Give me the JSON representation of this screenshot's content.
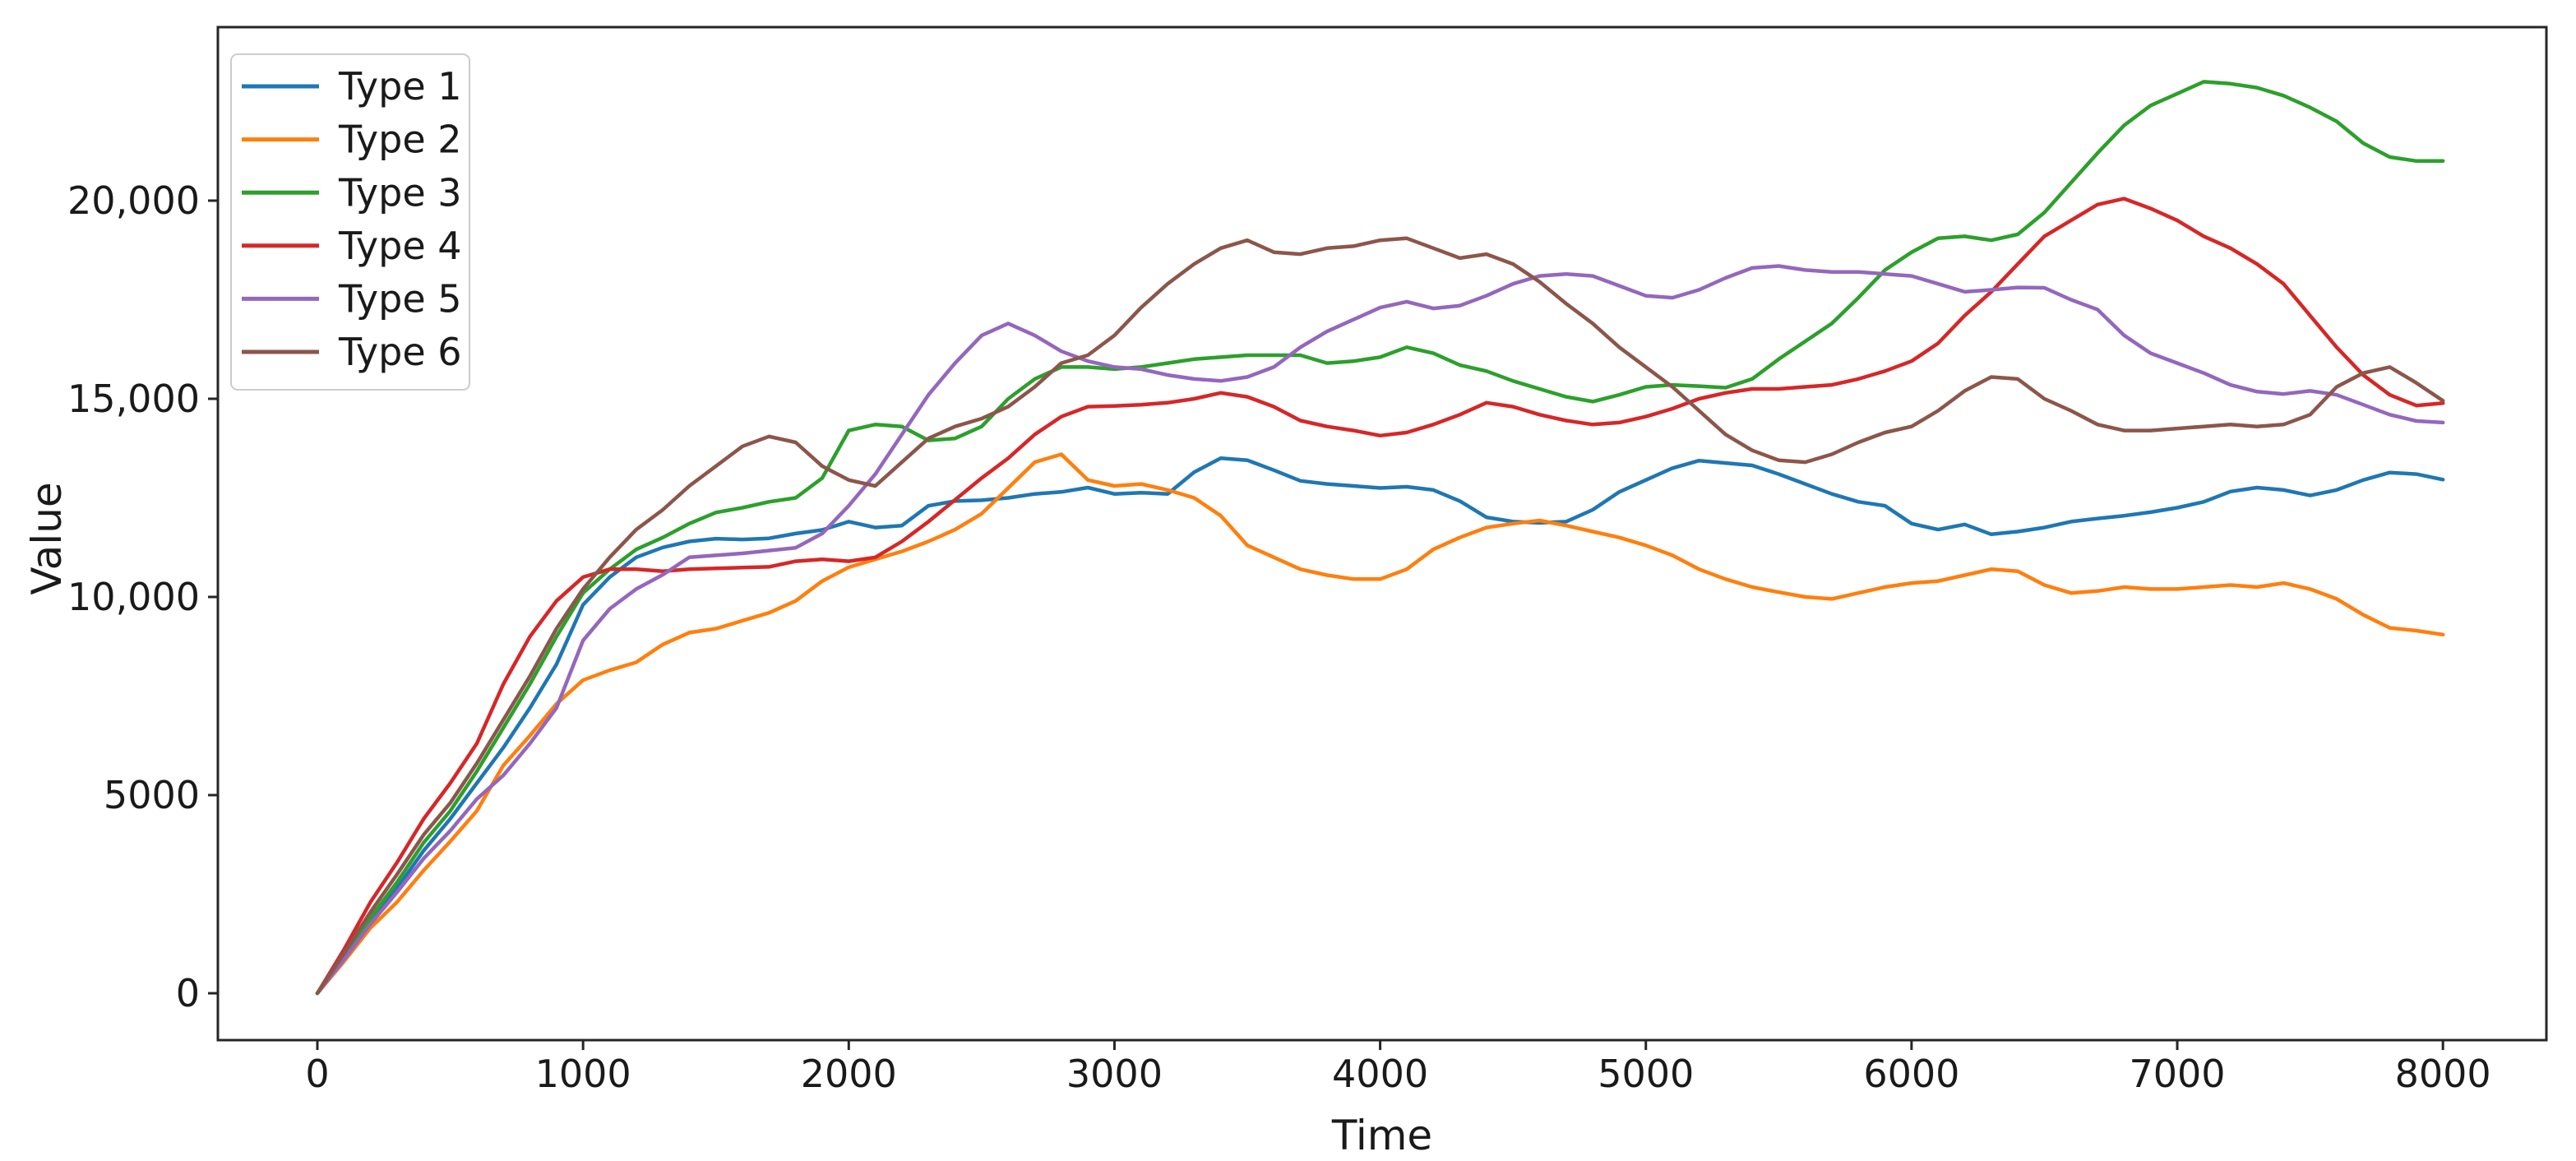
{
  "figure": {
    "background": "#ffffff",
    "text_color": "#1a1a1a",
    "spine_color": "#262626"
  },
  "chart_data": {
    "type": "line",
    "title": "",
    "xlabel": "Time",
    "ylabel": "Value",
    "grid": false,
    "legend_position": "upper left",
    "xlim": [
      -375,
      8390
    ],
    "ylim": [
      -1180,
      24380
    ],
    "x_ticks": [
      0,
      1000,
      2000,
      3000,
      4000,
      5000,
      6000,
      7000,
      8000
    ],
    "x_tick_labels": [
      "0",
      "1000",
      "2000",
      "3000",
      "4000",
      "5000",
      "6000",
      "7000",
      "8000"
    ],
    "y_ticks": [
      0,
      5000,
      10000,
      15000,
      20000
    ],
    "y_tick_labels": [
      "0",
      "5000",
      "10,000",
      "15,000",
      "20,000"
    ],
    "x_start": 0,
    "x_step": 100,
    "series": [
      {
        "name": "Type 1",
        "color": "#1f77b4",
        "values": [
          0,
          900,
          1800,
          2650,
          3600,
          4400,
          5300,
          6200,
          7200,
          8300,
          9800,
          10500,
          11000,
          11250,
          11400,
          11470,
          11450,
          11480,
          11600,
          11690,
          11900,
          11750,
          11800,
          12300,
          12420,
          12440,
          12500,
          12600,
          12650,
          12760,
          12600,
          12630,
          12600,
          13150,
          13500,
          13450,
          13200,
          12930,
          12850,
          12800,
          12750,
          12780,
          12700,
          12420,
          12010,
          11900,
          11870,
          11900,
          12200,
          12650,
          12950,
          13250,
          13440,
          13380,
          13320,
          13100,
          12850,
          12600,
          12400,
          12300,
          11850,
          11700,
          11830,
          11580,
          11650,
          11750,
          11900,
          11980,
          12050,
          12140,
          12250,
          12400,
          12660,
          12760,
          12700,
          12560,
          12700,
          12950,
          13140,
          13100,
          12960
        ]
      },
      {
        "name": "Type 2",
        "color": "#ff7f0e",
        "values": [
          0,
          800,
          1650,
          2300,
          3100,
          3830,
          4600,
          5750,
          6500,
          7300,
          7900,
          8150,
          8350,
          8800,
          9100,
          9200,
          9400,
          9600,
          9900,
          10400,
          10750,
          10950,
          11150,
          11400,
          11700,
          12100,
          12750,
          13400,
          13600,
          12950,
          12800,
          12850,
          12700,
          12500,
          12050,
          11300,
          11000,
          10700,
          10550,
          10450,
          10450,
          10700,
          11200,
          11500,
          11750,
          11850,
          11930,
          11800,
          11650,
          11500,
          11300,
          11050,
          10700,
          10450,
          10250,
          10120,
          10000,
          9950,
          10100,
          10250,
          10350,
          10400,
          10550,
          10700,
          10650,
          10300,
          10100,
          10150,
          10250,
          10200,
          10200,
          10250,
          10300,
          10250,
          10350,
          10200,
          9950,
          9550,
          9220,
          9150,
          9050
        ]
      },
      {
        "name": "Type 3",
        "color": "#2ca02c",
        "values": [
          0,
          950,
          1900,
          2800,
          3800,
          4600,
          5600,
          6700,
          7800,
          9000,
          10100,
          10700,
          11200,
          11500,
          11850,
          12130,
          12250,
          12400,
          12500,
          13000,
          14200,
          14350,
          14300,
          13950,
          14000,
          14300,
          15000,
          15500,
          15800,
          15800,
          15750,
          15800,
          15900,
          16000,
          16050,
          16100,
          16100,
          16100,
          15900,
          15950,
          16050,
          16300,
          16150,
          15850,
          15700,
          15450,
          15250,
          15050,
          14930,
          15100,
          15300,
          15350,
          15320,
          15280,
          15500,
          16000,
          16450,
          16900,
          17550,
          18250,
          18700,
          19050,
          19100,
          19000,
          19150,
          19700,
          20450,
          21200,
          21900,
          22400,
          22700,
          23000,
          22950,
          22850,
          22650,
          22350,
          22000,
          21450,
          21100,
          21000,
          21000
        ]
      },
      {
        "name": "Type 4",
        "color": "#d62728",
        "values": [
          0,
          1100,
          2300,
          3300,
          4400,
          5300,
          6300,
          7800,
          9000,
          9900,
          10500,
          10700,
          10700,
          10650,
          10700,
          10720,
          10740,
          10760,
          10900,
          10950,
          10900,
          11000,
          11400,
          11900,
          12450,
          13000,
          13500,
          14100,
          14550,
          14800,
          14820,
          14850,
          14900,
          15000,
          15150,
          15050,
          14800,
          14450,
          14300,
          14200,
          14070,
          14150,
          14350,
          14600,
          14900,
          14800,
          14600,
          14450,
          14350,
          14400,
          14550,
          14750,
          15000,
          15150,
          15250,
          15250,
          15300,
          15350,
          15500,
          15700,
          15950,
          16400,
          17100,
          17700,
          18400,
          19100,
          19500,
          19900,
          20050,
          19800,
          19500,
          19100,
          18800,
          18400,
          17900,
          17100,
          16300,
          15600,
          15100,
          14830,
          14890
        ]
      },
      {
        "name": "Type 5",
        "color": "#9467bd",
        "values": [
          0,
          850,
          1750,
          2550,
          3400,
          4100,
          4900,
          5500,
          6300,
          7200,
          8900,
          9700,
          10200,
          10560,
          11000,
          11050,
          11100,
          11170,
          11240,
          11600,
          12300,
          13100,
          14100,
          15100,
          15900,
          16600,
          16900,
          16600,
          16200,
          15950,
          15800,
          15750,
          15600,
          15500,
          15450,
          15550,
          15800,
          16300,
          16700,
          17000,
          17300,
          17450,
          17280,
          17350,
          17600,
          17900,
          18100,
          18150,
          18100,
          17850,
          17600,
          17550,
          17750,
          18050,
          18300,
          18350,
          18250,
          18200,
          18200,
          18150,
          18100,
          17900,
          17700,
          17750,
          17810,
          17800,
          17500,
          17250,
          16600,
          16150,
          15900,
          15650,
          15350,
          15180,
          15120,
          15200,
          15100,
          14850,
          14600,
          14440,
          14400
        ]
      },
      {
        "name": "Type 6",
        "color": "#8c564b",
        "values": [
          0,
          1000,
          2050,
          3000,
          4000,
          4800,
          5800,
          6900,
          8000,
          9200,
          10200,
          11000,
          11700,
          12200,
          12800,
          13300,
          13800,
          14050,
          13900,
          13300,
          12950,
          12800,
          13400,
          14000,
          14300,
          14500,
          14800,
          15300,
          15900,
          16100,
          16600,
          17300,
          17900,
          18400,
          18800,
          19000,
          18700,
          18650,
          18800,
          18850,
          19000,
          19050,
          18800,
          18550,
          18650,
          18400,
          17950,
          17400,
          16900,
          16300,
          15800,
          15300,
          14700,
          14100,
          13700,
          13450,
          13400,
          13600,
          13900,
          14150,
          14300,
          14700,
          15200,
          15550,
          15500,
          15000,
          14700,
          14350,
          14200,
          14200,
          14250,
          14300,
          14350,
          14300,
          14350,
          14600,
          15300,
          15650,
          15800,
          15400,
          14950
        ]
      }
    ]
  }
}
